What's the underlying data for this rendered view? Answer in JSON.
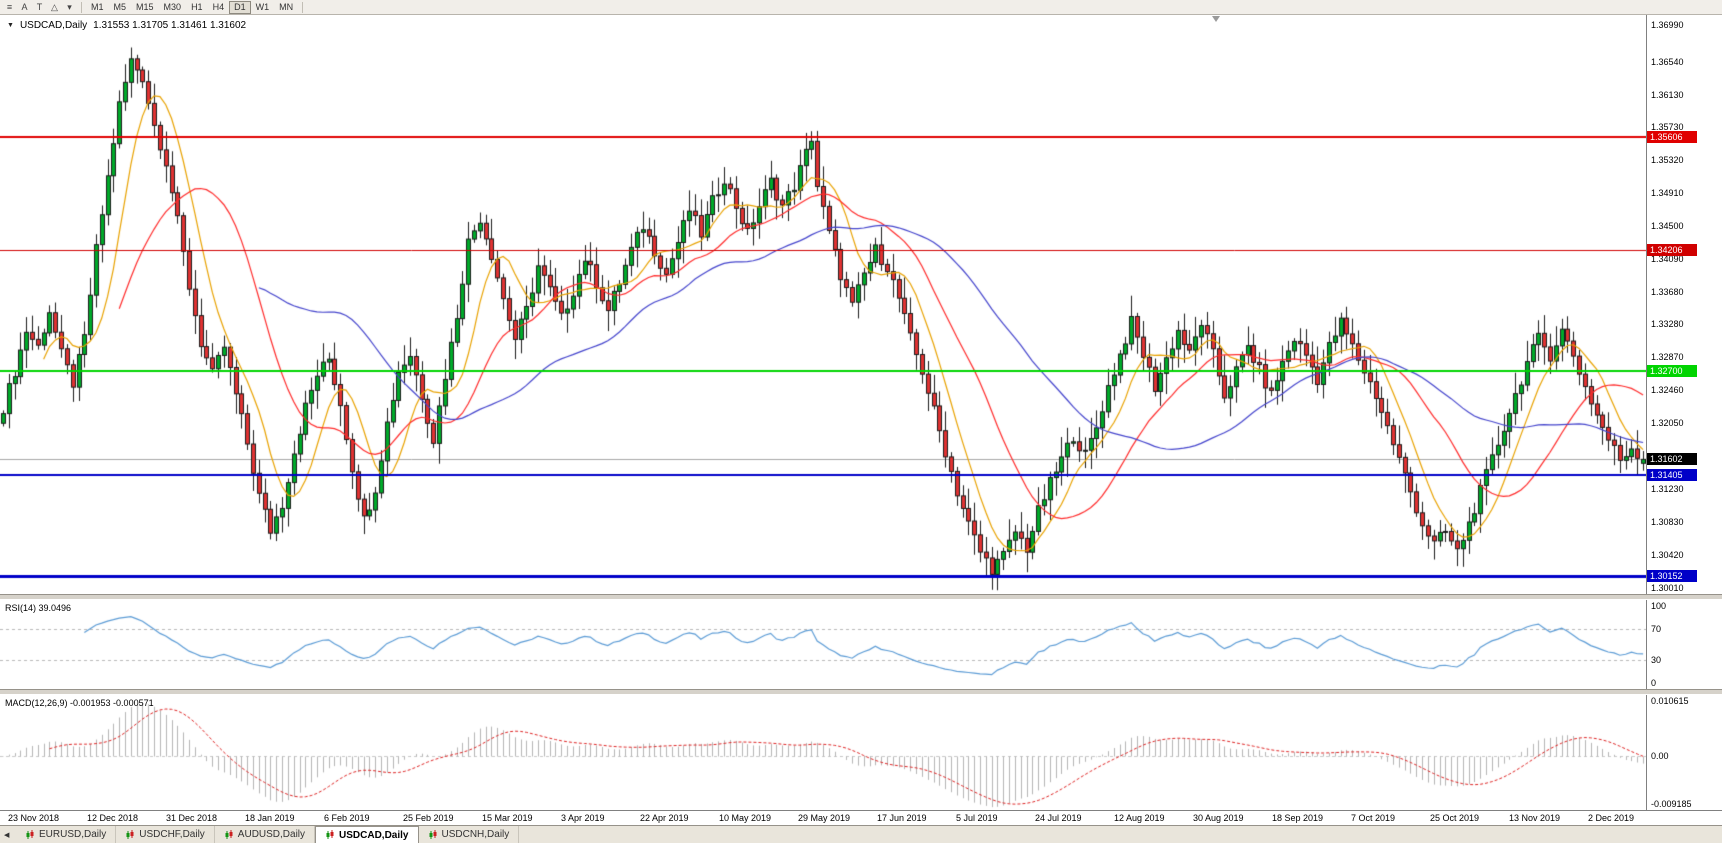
{
  "toolbar": {
    "tools": [
      {
        "name": "chart-list",
        "glyph": "≡"
      },
      {
        "name": "text-tool",
        "glyph": "A"
      },
      {
        "name": "label-tool",
        "glyph": "T"
      },
      {
        "name": "shapes-tool",
        "glyph": "△"
      },
      {
        "name": "shapes-dropdown",
        "glyph": "▾"
      }
    ],
    "timeframes": [
      {
        "label": "M1",
        "active": false
      },
      {
        "label": "M5",
        "active": false
      },
      {
        "label": "M15",
        "active": false
      },
      {
        "label": "M30",
        "active": false
      },
      {
        "label": "H1",
        "active": false
      },
      {
        "label": "H4",
        "active": false
      },
      {
        "label": "D1",
        "active": true
      },
      {
        "label": "W1",
        "active": false
      },
      {
        "label": "MN",
        "active": false
      }
    ]
  },
  "chart": {
    "marker": "▼",
    "symbol_label": "USDCAD,Daily",
    "ohlc_text": "1.31553 1.31705 1.31461 1.31602"
  },
  "chart_data": {
    "type": "candlestick",
    "symbol": "USDCAD",
    "period": "Daily",
    "ohlc": {
      "open": 1.31553,
      "high": 1.31705,
      "low": 1.31461,
      "close": 1.31602
    },
    "price_axis": {
      "top": 1.3712,
      "bottom": 1.2993,
      "ticks": [
        "1.36990",
        "1.36540",
        "1.36130",
        "1.35730",
        "1.35320",
        "1.34910",
        "1.34500",
        "1.34090",
        "1.33680",
        "1.33280",
        "1.32870",
        "1.32460",
        "1.32050",
        "1.31230",
        "1.30830",
        "1.30420",
        "1.30010"
      ]
    },
    "levels": [
      {
        "price": 1.35606,
        "label": "1.35606",
        "color": "#e00000",
        "width": 2
      },
      {
        "price": 1.34206,
        "label": "1.34206",
        "color": "#d00000",
        "width": 1
      },
      {
        "price": 1.327,
        "label": "1.32700",
        "color": "#00d400",
        "width": 2
      },
      {
        "price": 1.31405,
        "label": "1.31405",
        "color": "#0000c8",
        "width": 2
      },
      {
        "price": 1.30152,
        "label": "1.30152",
        "color": "#0000c8",
        "width": 3
      }
    ],
    "current_price": {
      "value": 1.31602,
      "label": "1.31602",
      "line_color": "#a6a6a6",
      "badge_color": "#000000"
    },
    "dates": [
      "23 Nov 2018",
      "12 Dec 2018",
      "31 Dec 2018",
      "18 Jan 2019",
      "6 Feb 2019",
      "25 Feb 2019",
      "15 Mar 2019",
      "3 Apr 2019",
      "22 Apr 2019",
      "10 May 2019",
      "29 May 2019",
      "17 Jun 2019",
      "5 Jul 2019",
      "24 Jul 2019",
      "12 Aug 2019",
      "30 Aug 2019",
      "18 Sep 2019",
      "7 Oct 2019",
      "25 Oct 2019",
      "13 Nov 2019",
      "2 Dec 2019"
    ],
    "candles_n": 283,
    "close_anchors": [
      [
        0,
        1.3225
      ],
      [
        2,
        1.327
      ],
      [
        4,
        1.332
      ],
      [
        6,
        1.33
      ],
      [
        8,
        1.3345
      ],
      [
        10,
        1.329
      ],
      [
        12,
        1.3255
      ],
      [
        14,
        1.331
      ],
      [
        16,
        1.342
      ],
      [
        18,
        1.351
      ],
      [
        20,
        1.36
      ],
      [
        22,
        1.3655
      ],
      [
        24,
        1.3635
      ],
      [
        26,
        1.3575
      ],
      [
        28,
        1.353
      ],
      [
        30,
        1.3455
      ],
      [
        32,
        1.3375
      ],
      [
        34,
        1.3305
      ],
      [
        36,
        1.3265
      ],
      [
        38,
        1.33
      ],
      [
        40,
        1.324
      ],
      [
        42,
        1.318
      ],
      [
        44,
        1.3115
      ],
      [
        46,
        1.3072
      ],
      [
        48,
        1.3105
      ],
      [
        50,
        1.317
      ],
      [
        52,
        1.3225
      ],
      [
        54,
        1.3265
      ],
      [
        56,
        1.3285
      ],
      [
        58,
        1.323
      ],
      [
        60,
        1.315
      ],
      [
        62,
        1.3085
      ],
      [
        64,
        1.3125
      ],
      [
        66,
        1.3205
      ],
      [
        68,
        1.327
      ],
      [
        70,
        1.329
      ],
      [
        72,
        1.324
      ],
      [
        74,
        1.3185
      ],
      [
        76,
        1.3265
      ],
      [
        78,
        1.334
      ],
      [
        80,
        1.343
      ],
      [
        82,
        1.346
      ],
      [
        84,
        1.3415
      ],
      [
        86,
        1.336
      ],
      [
        88,
        1.331
      ],
      [
        90,
        1.3345
      ],
      [
        92,
        1.34
      ],
      [
        94,
        1.337
      ],
      [
        96,
        1.3335
      ],
      [
        98,
        1.337
      ],
      [
        100,
        1.341
      ],
      [
        102,
        1.338
      ],
      [
        104,
        1.3345
      ],
      [
        106,
        1.338
      ],
      [
        108,
        1.342
      ],
      [
        110,
        1.345
      ],
      [
        112,
        1.342
      ],
      [
        114,
        1.339
      ],
      [
        116,
        1.343
      ],
      [
        118,
        1.347
      ],
      [
        120,
        1.344
      ],
      [
        122,
        1.348
      ],
      [
        124,
        1.351
      ],
      [
        126,
        1.3475
      ],
      [
        128,
        1.344
      ],
      [
        130,
        1.3475
      ],
      [
        132,
        1.3505
      ],
      [
        134,
        1.3475
      ],
      [
        136,
        1.35
      ],
      [
        138,
        1.354
      ],
      [
        139,
        1.356
      ],
      [
        140,
        1.35
      ],
      [
        142,
        1.344
      ],
      [
        144,
        1.339
      ],
      [
        146,
        1.335
      ],
      [
        148,
        1.339
      ],
      [
        150,
        1.342
      ],
      [
        152,
        1.34
      ],
      [
        154,
        1.336
      ],
      [
        156,
        1.331
      ],
      [
        158,
        1.327
      ],
      [
        160,
        1.322
      ],
      [
        162,
        1.317
      ],
      [
        164,
        1.312
      ],
      [
        166,
        1.308
      ],
      [
        168,
        1.3045
      ],
      [
        170,
        1.3025
      ],
      [
        172,
        1.304
      ],
      [
        174,
        1.307
      ],
      [
        176,
        1.305
      ],
      [
        178,
        1.3095
      ],
      [
        180,
        1.313
      ],
      [
        182,
        1.316
      ],
      [
        184,
        1.319
      ],
      [
        186,
        1.3165
      ],
      [
        188,
        1.32
      ],
      [
        190,
        1.325
      ],
      [
        192,
        1.329
      ],
      [
        194,
        1.333
      ],
      [
        196,
        1.329
      ],
      [
        198,
        1.325
      ],
      [
        200,
        1.3285
      ],
      [
        202,
        1.332
      ],
      [
        204,
        1.329
      ],
      [
        206,
        1.333
      ],
      [
        208,
        1.329
      ],
      [
        210,
        1.324
      ],
      [
        212,
        1.327
      ],
      [
        214,
        1.33
      ],
      [
        216,
        1.327
      ],
      [
        218,
        1.324
      ],
      [
        220,
        1.328
      ],
      [
        222,
        1.331
      ],
      [
        224,
        1.329
      ],
      [
        226,
        1.326
      ],
      [
        228,
        1.33
      ],
      [
        230,
        1.333
      ],
      [
        232,
        1.33
      ],
      [
        234,
        1.327
      ],
      [
        236,
        1.324
      ],
      [
        238,
        1.32
      ],
      [
        240,
        1.316
      ],
      [
        242,
        1.312
      ],
      [
        244,
        1.308
      ],
      [
        246,
        1.3055
      ],
      [
        248,
        1.307
      ],
      [
        250,
        1.3045
      ],
      [
        252,
        1.308
      ],
      [
        254,
        1.312
      ],
      [
        256,
        1.316
      ],
      [
        258,
        1.32
      ],
      [
        260,
        1.324
      ],
      [
        262,
        1.328
      ],
      [
        264,
        1.331
      ],
      [
        266,
        1.329
      ],
      [
        268,
        1.332
      ],
      [
        270,
        1.329
      ],
      [
        272,
        1.325
      ],
      [
        274,
        1.3215
      ],
      [
        276,
        1.3185
      ],
      [
        278,
        1.316
      ],
      [
        280,
        1.3175
      ],
      [
        282,
        1.31602
      ]
    ],
    "last_ohlc": [
      1.31553,
      1.31705,
      1.31461,
      1.31602
    ],
    "moving_averages": [
      {
        "period": 8,
        "color": "#e8a200"
      },
      {
        "period": 21,
        "color": "#ff2a2a"
      },
      {
        "period": 45,
        "color": "#4444cc"
      }
    ],
    "candle_colors": {
      "up": "#00aa2a",
      "down": "#e03232",
      "outline": "#1a1a1a"
    }
  },
  "rsi": {
    "label": "RSI(14) 39.0496",
    "line_color": "#5b9bd5",
    "levels": [
      70,
      30
    ],
    "ticks": [
      {
        "value": 100,
        "label": "100"
      },
      {
        "value": 70,
        "label": "70"
      },
      {
        "value": 30,
        "label": "30"
      },
      {
        "value": 0,
        "label": "0"
      }
    ]
  },
  "macd": {
    "label": "MACD(12,26,9) -0.001953 -0.000571",
    "hist_color": "#b4b4b4",
    "signal_color": "#dd2222",
    "ticks": [
      {
        "value": 0.010615,
        "label": "0.010615"
      },
      {
        "value": 0,
        "label": "0.00"
      },
      {
        "value": -0.009185,
        "label": "-0.009185"
      }
    ]
  },
  "tabs": {
    "scroll_glyph": "◀",
    "items": [
      {
        "label": "EURUSD,Daily",
        "active": false
      },
      {
        "label": "USDCHF,Daily",
        "active": false
      },
      {
        "label": "AUDUSD,Daily",
        "active": false
      },
      {
        "label": "USDCAD,Daily",
        "active": true
      },
      {
        "label": "USDCNH,Daily",
        "active": false
      }
    ]
  }
}
